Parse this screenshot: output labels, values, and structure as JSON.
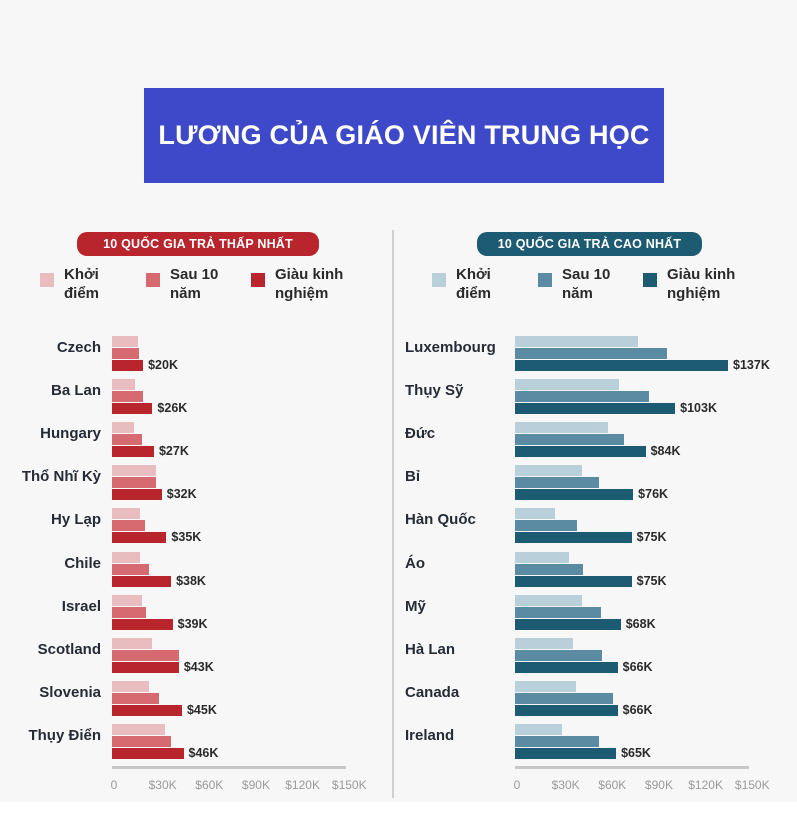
{
  "title": "LƯƠNG CỦA GIÁO VIÊN TRUNG HỌC",
  "legend_labels": [
    "Khởi điểm",
    "Sau 10 năm",
    "Giàu kinh nghiệm"
  ],
  "axis_ticks": [
    "0",
    "$30K",
    "$60K",
    "$90K",
    "$120K",
    "$150K"
  ],
  "colors": {
    "title_bg": "#3e49c9",
    "low": [
      "#e9bcc0",
      "#d66a70",
      "#b8252c"
    ],
    "high": [
      "#b9d0da",
      "#5a8ba3",
      "#1c5b72"
    ]
  },
  "chart_data": [
    {
      "type": "bar",
      "orientation": "horizontal",
      "title": "10 QUỐC GIA TRẢ THẤP NHẤT",
      "xlabel": "",
      "ylabel": "",
      "xlim": [
        0,
        150
      ],
      "xticks": [
        "0",
        "$30K",
        "$60K",
        "$90K",
        "$120K",
        "$150K"
      ],
      "grid": false,
      "legend_position": "top",
      "categories": [
        "Czech",
        "Ba Lan",
        "Hungary",
        "Thổ Nhĩ Kỳ",
        "Hy Lạp",
        "Chile",
        "Israel",
        "Scotland",
        "Slovenia",
        "Thụy Điển"
      ],
      "series": [
        {
          "name": "Khởi điểm",
          "values": [
            17,
            15,
            14,
            28,
            18,
            18,
            19,
            26,
            24,
            34
          ]
        },
        {
          "name": "Sau 10 năm",
          "values": [
            17.5,
            20,
            19,
            28.5,
            21,
            24,
            22,
            43,
            30,
            38
          ]
        },
        {
          "name": "Giàu kinh nghiệm",
          "values": [
            20,
            26,
            27,
            32,
            35,
            38,
            39,
            43,
            45,
            46
          ]
        }
      ],
      "data_labels": [
        "$20K",
        "$26K",
        "$27K",
        "$32K",
        "$35K",
        "$38K",
        "$39K",
        "$43K",
        "$45K",
        "$46K"
      ]
    },
    {
      "type": "bar",
      "orientation": "horizontal",
      "title": "10 QUỐC GIA TRẢ CAO NHẤT",
      "xlabel": "",
      "ylabel": "",
      "xlim": [
        0,
        150
      ],
      "xticks": [
        "0",
        "$30K",
        "$60K",
        "$90K",
        "$120K",
        "$150K"
      ],
      "grid": false,
      "legend_position": "top",
      "categories": [
        "Luxembourg",
        "Thụy Sỹ",
        "Đức",
        "Bỉ",
        "Hàn Quốc",
        "Áo",
        "Mỹ",
        "Hà Lan",
        "Canada",
        "Ireland"
      ],
      "series": [
        {
          "name": "Khởi điểm",
          "values": [
            79,
            67,
            60,
            43,
            26,
            35,
            43,
            37,
            39,
            30
          ]
        },
        {
          "name": "Sau 10 năm",
          "values": [
            98,
            86,
            70,
            54,
            40,
            44,
            55,
            56,
            63,
            54
          ]
        },
        {
          "name": "Giàu kinh nghiệm",
          "values": [
            137,
            103,
            84,
            76,
            75,
            75,
            68,
            66,
            66,
            65
          ]
        }
      ],
      "data_labels": [
        "$137K",
        "$103K",
        "$84K",
        "$76K",
        "$75K",
        "$75K",
        "$68K",
        "$66K",
        "$66K",
        "$65K"
      ]
    }
  ]
}
